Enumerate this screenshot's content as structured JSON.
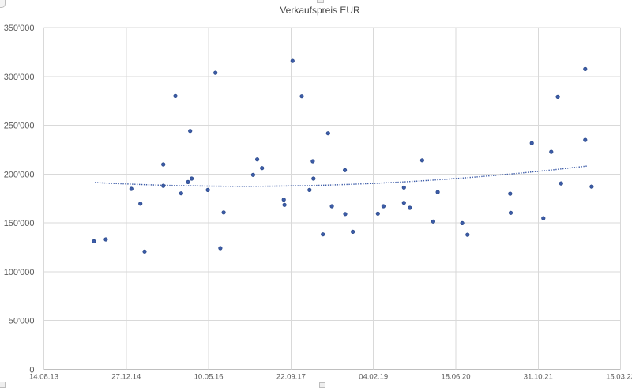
{
  "title": "Verkaufspreis EUR",
  "colors": {
    "marker_fill": "#3D5CA8",
    "marker_border": "#2C4B8C",
    "trendline": "#3D5CA8",
    "gridline": "#D9D9D9",
    "axis_line": "#BFBFBF",
    "axis_text": "#595959",
    "title_text": "#454545"
  },
  "chart_data": {
    "type": "scatter",
    "title": "Verkaufspreis EUR",
    "grid": true,
    "legend": false,
    "x_axis": {
      "start_date": "2013-08-14",
      "end_date": "2023-03-15",
      "tick_interval_days": 500,
      "tick_labels": [
        "14.08.13",
        "27.12.14",
        "10.05.16",
        "22.09.17",
        "04.02.19",
        "18.06.20",
        "31.10.21",
        "15.03.23"
      ]
    },
    "y_axis": {
      "min": 0,
      "max": 350000,
      "tick_interval": 50000,
      "tick_labels": [
        "0",
        "50'000",
        "100'000",
        "150'000",
        "200'000",
        "250'000",
        "300'000",
        "350'000"
      ]
    },
    "points": [
      {
        "date": "2014-06-14",
        "value": 131200
      },
      {
        "date": "2014-08-25",
        "value": 133100
      },
      {
        "date": "2015-01-27",
        "value": 184900
      },
      {
        "date": "2015-03-23",
        "value": 169700
      },
      {
        "date": "2015-04-17",
        "value": 120700
      },
      {
        "date": "2015-08-09",
        "value": 188100
      },
      {
        "date": "2015-08-09",
        "value": 210000
      },
      {
        "date": "2015-10-21",
        "value": 280100
      },
      {
        "date": "2015-11-25",
        "value": 180300
      },
      {
        "date": "2016-01-06",
        "value": 191900
      },
      {
        "date": "2016-01-19",
        "value": 244200
      },
      {
        "date": "2016-01-28",
        "value": 195400
      },
      {
        "date": "2016-05-05",
        "value": 183800
      },
      {
        "date": "2016-06-20",
        "value": 303800
      },
      {
        "date": "2016-07-20",
        "value": 124200
      },
      {
        "date": "2016-08-09",
        "value": 160800
      },
      {
        "date": "2017-02-04",
        "value": 199200
      },
      {
        "date": "2017-03-01",
        "value": 215100
      },
      {
        "date": "2017-03-30",
        "value": 206200
      },
      {
        "date": "2017-08-09",
        "value": 173800
      },
      {
        "date": "2017-08-13",
        "value": 168500
      },
      {
        "date": "2017-10-01",
        "value": 315900
      },
      {
        "date": "2017-11-26",
        "value": 279800
      },
      {
        "date": "2018-01-12",
        "value": 183800
      },
      {
        "date": "2018-02-01",
        "value": 213200
      },
      {
        "date": "2018-02-05",
        "value": 195400
      },
      {
        "date": "2018-04-03",
        "value": 138200
      },
      {
        "date": "2018-05-05",
        "value": 241800
      },
      {
        "date": "2018-05-28",
        "value": 167100
      },
      {
        "date": "2018-08-15",
        "value": 204100
      },
      {
        "date": "2018-08-17",
        "value": 159200
      },
      {
        "date": "2018-10-02",
        "value": 140900
      },
      {
        "date": "2019-03-03",
        "value": 159600
      },
      {
        "date": "2019-04-06",
        "value": 167100
      },
      {
        "date": "2019-08-08",
        "value": 186300
      },
      {
        "date": "2019-08-08",
        "value": 170600
      },
      {
        "date": "2019-09-13",
        "value": 165500
      },
      {
        "date": "2019-11-27",
        "value": 214200
      },
      {
        "date": "2020-02-02",
        "value": 151500
      },
      {
        "date": "2020-02-29",
        "value": 181600
      },
      {
        "date": "2020-07-27",
        "value": 149800
      },
      {
        "date": "2020-08-28",
        "value": 137900
      },
      {
        "date": "2021-05-14",
        "value": 180000
      },
      {
        "date": "2021-05-17",
        "value": 160400
      },
      {
        "date": "2021-09-22",
        "value": 231800
      },
      {
        "date": "2021-12-01",
        "value": 154900
      },
      {
        "date": "2022-01-18",
        "value": 222900
      },
      {
        "date": "2022-02-27",
        "value": 279300
      },
      {
        "date": "2022-03-19",
        "value": 190500
      },
      {
        "date": "2022-08-12",
        "value": 307600
      },
      {
        "date": "2022-08-12",
        "value": 235000
      },
      {
        "date": "2022-09-20",
        "value": 187300
      }
    ],
    "trendline": {
      "type": "polynomial",
      "order": 2,
      "line_style": "dotted",
      "anchors": [
        {
          "date": "2014-06-19",
          "value": 191400
        },
        {
          "date": "2015-09-12",
          "value": 188500
        },
        {
          "date": "2022-09-11",
          "value": 208700
        }
      ]
    }
  }
}
